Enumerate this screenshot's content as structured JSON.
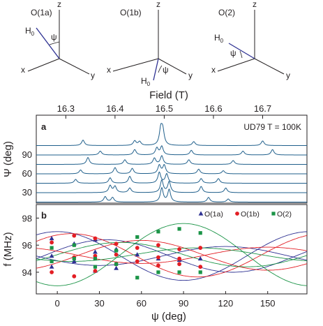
{
  "diagrams": [
    {
      "label": "O(1a)",
      "field": "H",
      "field_sub": "0",
      "angle": "ψ",
      "axes": [
        "z",
        "x",
        "y"
      ]
    },
    {
      "label": "O(1b)",
      "field": "H",
      "field_sub": "0",
      "angle": "ψ",
      "axes": [
        "z",
        "x",
        "y"
      ]
    },
    {
      "label": "O(2)",
      "field": "H",
      "field_sub": "0",
      "angle": "ψ",
      "axes": [
        "z",
        "x",
        "y"
      ]
    }
  ],
  "colors": {
    "axis": "#231f20",
    "field_line": "#2e3192",
    "trace": "#1f5f8b",
    "o1a": "#2e3192",
    "o1b": "#e31e24",
    "o2": "#1b9447"
  },
  "chart_data": [
    {
      "type": "line",
      "panel": "a",
      "annotation": "UD79 T = 100K",
      "top_axis_label": "Field (T)",
      "top_axis_ticks": [
        "16.3",
        "16.4",
        "16.5",
        "16.6",
        "16.7"
      ],
      "top_axis_values": [
        16.3,
        16.4,
        16.5,
        16.6,
        16.7
      ],
      "xlim": [
        16.24,
        16.79
      ],
      "ylabel": "Ψ (deg)",
      "y_ticks": [
        "90",
        "60",
        "30"
      ],
      "y_tick_values": [
        90,
        60,
        30
      ],
      "grid": false,
      "traces": [
        {
          "psi": 105,
          "peaks": [
            [
              16.335,
              0.35
            ],
            [
              16.44,
              0.3
            ],
            [
              16.45,
              0.25
            ],
            [
              16.493,
              1.0
            ],
            [
              16.497,
              0.9
            ],
            [
              16.56,
              0.25
            ],
            [
              16.7,
              0.3
            ]
          ]
        },
        {
          "psi": 90,
          "peaks": [
            [
              16.37,
              0.25
            ],
            [
              16.44,
              0.35
            ],
            [
              16.485,
              0.45
            ],
            [
              16.495,
              0.55
            ],
            [
              16.555,
              0.3
            ],
            [
              16.66,
              0.25
            ],
            [
              16.72,
              0.35
            ]
          ]
        },
        {
          "psi": 75,
          "peaks": [
            [
              16.345,
              0.45
            ],
            [
              16.42,
              0.3
            ],
            [
              16.48,
              0.4
            ],
            [
              16.495,
              0.55
            ],
            [
              16.55,
              0.3
            ],
            [
              16.64,
              0.25
            ]
          ]
        },
        {
          "psi": 60,
          "peaks": [
            [
              16.33,
              0.25
            ],
            [
              16.4,
              0.4
            ],
            [
              16.435,
              0.35
            ],
            [
              16.49,
              0.55
            ],
            [
              16.5,
              0.55
            ],
            [
              16.57,
              0.3
            ],
            [
              16.62,
              0.2
            ]
          ]
        },
        {
          "psi": 45,
          "peaks": [
            [
              16.32,
              0.25
            ],
            [
              16.39,
              0.35
            ],
            [
              16.43,
              0.45
            ],
            [
              16.49,
              0.7
            ],
            [
              16.505,
              0.6
            ],
            [
              16.575,
              0.3
            ],
            [
              16.61,
              0.3
            ]
          ]
        },
        {
          "psi": 30,
          "peaks": [
            [
              16.39,
              0.45
            ],
            [
              16.4,
              0.4
            ],
            [
              16.43,
              0.3
            ],
            [
              16.495,
              0.8
            ],
            [
              16.51,
              0.7
            ],
            [
              16.575,
              0.4
            ],
            [
              16.625,
              0.3
            ]
          ]
        },
        {
          "psi": 15,
          "peaks": [
            [
              16.38,
              0.35
            ],
            [
              16.395,
              0.3
            ],
            [
              16.495,
              0.9
            ],
            [
              16.51,
              0.8
            ],
            [
              16.59,
              0.3
            ],
            [
              16.63,
              0.2
            ]
          ]
        }
      ]
    },
    {
      "type": "scatter",
      "panel": "b",
      "xlabel": "ψ (deg)",
      "ylabel": "f (MHz)",
      "xlim": [
        -15,
        178
      ],
      "ylim": [
        92.4,
        99.0
      ],
      "x_ticks": [
        0,
        30,
        60,
        90,
        120,
        150
      ],
      "y_ticks": [
        94,
        96,
        98
      ],
      "grid": false,
      "legend": "top-right",
      "legend_entries": [
        "O(1a)",
        "O(1b)",
        "O(2)"
      ],
      "fit_curves": [
        {
          "series": "O(1a)",
          "center": 95.2,
          "amp": 1.8,
          "phase": 0
        },
        {
          "series": "O(1a)",
          "center": 95.2,
          "amp": 1.2,
          "phase": 35
        },
        {
          "series": "O(1a)",
          "center": 95.2,
          "amp": 0.7,
          "phase": 120
        },
        {
          "series": "O(1b)",
          "center": 95.25,
          "amp": 1.6,
          "phase": 10
        },
        {
          "series": "O(1b)",
          "center": 95.25,
          "amp": 1.1,
          "phase": 60
        },
        {
          "series": "O(1b)",
          "center": 95.25,
          "amp": 0.6,
          "phase": 150
        },
        {
          "series": "O(2)",
          "center": 95.3,
          "amp": -2.3,
          "phase": 0
        },
        {
          "series": "O(2)",
          "center": 95.3,
          "amp": 0.9,
          "phase": 45
        },
        {
          "series": "O(2)",
          "center": 95.3,
          "amp": 0.5,
          "phase": 100
        }
      ],
      "series": [
        {
          "name": "O(1a)",
          "marker": "triangle",
          "x": [
            -4,
            -4,
            -4,
            12,
            12,
            27,
            27,
            27,
            42,
            42,
            57,
            72,
            87,
            102
          ],
          "y": [
            96.5,
            94.4,
            95.2,
            96.1,
            94.8,
            96.4,
            95.5,
            94.1,
            95.7,
            94.3,
            95.3,
            95.0,
            94.9,
            95.0
          ]
        },
        {
          "name": "O(1b)",
          "marker": "circle",
          "x": [
            -4,
            -4,
            12,
            12,
            12,
            27,
            27,
            27,
            42,
            42,
            42,
            57,
            57,
            72,
            72,
            72,
            87,
            87,
            87,
            102,
            102
          ],
          "y": [
            96.2,
            94.0,
            96.7,
            95.1,
            93.7,
            96.5,
            95.2,
            94.1,
            96.1,
            95.3,
            94.6,
            95.8,
            94.8,
            96.0,
            95.1,
            94.5,
            95.7,
            95.0,
            94.6,
            95.8,
            94.4
          ]
        },
        {
          "name": "O(2)",
          "marker": "square",
          "x": [
            -4,
            -4,
            12,
            12,
            27,
            27,
            42,
            42,
            57,
            57,
            72,
            72,
            87,
            87,
            102,
            102
          ],
          "y": [
            95.8,
            94.8,
            96.0,
            95.0,
            95.0,
            94.4,
            95.6,
            94.6,
            96.6,
            93.6,
            97.0,
            94.0,
            97.2,
            94.0,
            96.9,
            94.0
          ]
        }
      ]
    }
  ]
}
